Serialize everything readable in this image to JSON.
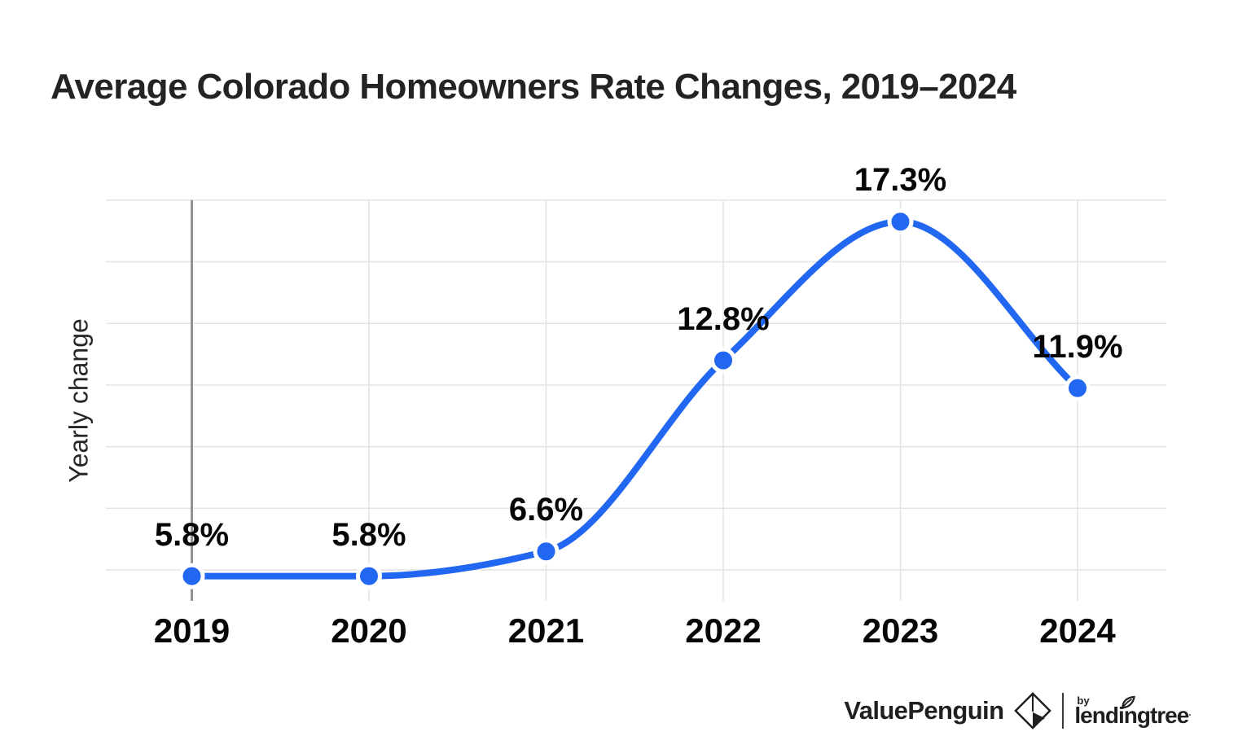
{
  "chart_data": {
    "type": "line",
    "title": "Average Colorado Homeowners Rate Changes, 2019–2024",
    "categories": [
      "2019",
      "2020",
      "2021",
      "2022",
      "2023",
      "2024"
    ],
    "values": [
      5.8,
      5.8,
      6.6,
      12.8,
      17.3,
      11.9
    ],
    "point_labels": [
      "5.8%",
      "5.8%",
      "6.6%",
      "12.8%",
      "17.3%",
      "11.9%"
    ],
    "xlabel": "",
    "ylabel": "Yearly change",
    "ylim": [
      5.0,
      18.2
    ],
    "yticks": [
      6,
      8,
      10,
      12,
      14,
      16,
      18
    ],
    "ytick_labels_shown": false,
    "grid": "horizontal gridlines plus one vertical gridline per year; no numeric y labels",
    "legend_position": "none",
    "curve": "smooth (monotone spline)",
    "colors": {
      "line": "#2267f2",
      "marker": "#2267f2",
      "marker_ring": "#ffffff",
      "grid": "#e4e4e4",
      "axis_line": "#929292",
      "label_text": "#060606"
    }
  },
  "footer": {
    "brand": "ValuePenguin",
    "by_label": "by",
    "partner_brand": "lendingtree",
    "trademark_dot": "·"
  }
}
